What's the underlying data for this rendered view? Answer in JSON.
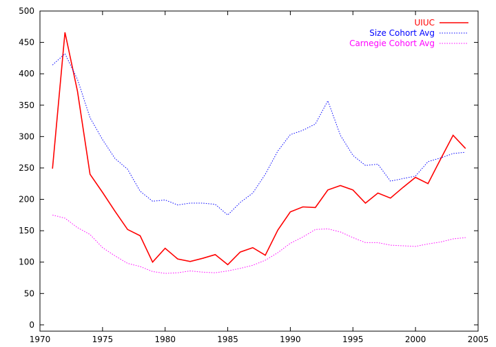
{
  "chart_data": {
    "type": "line",
    "title": "",
    "xlabel": "",
    "ylabel": "",
    "xlim": [
      1970,
      2005
    ],
    "ylim": [
      -10,
      500
    ],
    "xticks": [
      1970,
      1975,
      1980,
      1985,
      1990,
      1995,
      2000,
      2005
    ],
    "yticks": [
      0,
      50,
      100,
      150,
      200,
      250,
      300,
      350,
      400,
      450,
      500
    ],
    "grid": false,
    "legend_position": "top-right",
    "x": [
      1971,
      1972,
      1973,
      1974,
      1975,
      1976,
      1977,
      1978,
      1979,
      1980,
      1981,
      1982,
      1983,
      1984,
      1985,
      1986,
      1987,
      1988,
      1989,
      1990,
      1991,
      1992,
      1993,
      1994,
      1995,
      1996,
      1997,
      1998,
      1999,
      2000,
      2001,
      2002,
      2003,
      2004
    ],
    "series": [
      {
        "name": "UIUC",
        "color": "#ff0000",
        "style": "solid",
        "values": [
          249,
          466,
          372,
          240,
          211,
          181,
          152,
          142,
          100,
          122,
          105,
          101,
          106,
          112,
          96,
          116,
          123,
          111,
          151,
          180,
          188,
          187,
          215,
          222,
          215,
          194,
          210,
          202,
          219,
          235,
          225,
          264,
          302,
          281
        ]
      },
      {
        "name": "Size Cohort Avg",
        "color": "#0000ff",
        "style": "dotted",
        "values": [
          414,
          432,
          391,
          330,
          295,
          265,
          248,
          213,
          197,
          199,
          191,
          194,
          194,
          192,
          175,
          195,
          210,
          240,
          277,
          303,
          310,
          320,
          357,
          302,
          270,
          254,
          256,
          229,
          233,
          237,
          260,
          266,
          273,
          275
        ]
      },
      {
        "name": "Carnegie Cohort Avg",
        "color": "#ff00ff",
        "style": "dotted",
        "values": [
          175,
          170,
          155,
          144,
          123,
          110,
          98,
          93,
          85,
          82,
          83,
          86,
          84,
          83,
          86,
          90,
          95,
          103,
          115,
          130,
          140,
          152,
          153,
          148,
          139,
          131,
          131,
          127,
          126,
          125,
          129,
          132,
          137,
          139
        ]
      }
    ]
  }
}
